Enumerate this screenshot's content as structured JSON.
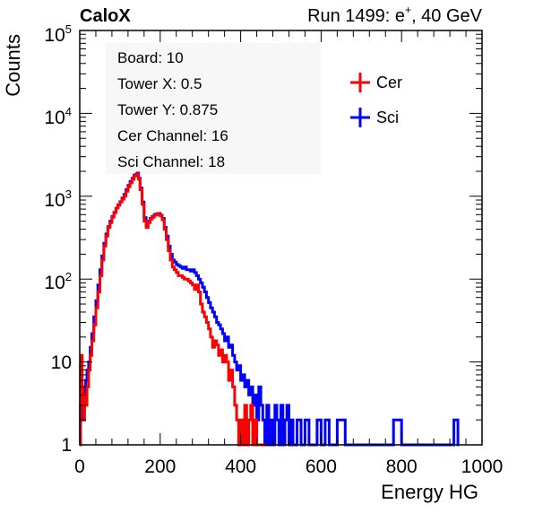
{
  "header": {
    "left": "CaloX",
    "run_prefix": "Run 1499: e",
    "run_sup": "+",
    "run_suffix": ", 40 GeV"
  },
  "info_box": {
    "lines": [
      "Board: 10",
      "Tower X: 0.5",
      "Tower Y: 0.875",
      "Cer Channel: 16",
      "Sci Channel: 18"
    ]
  },
  "chart_data": {
    "type": "line",
    "xlabel": "Energy HG",
    "ylabel": "Counts",
    "xlim": [
      0,
      1000
    ],
    "ylim": [
      1,
      100000
    ],
    "y_scale": "log",
    "grid": false,
    "legend_placement": "top-right",
    "x_ticks": [
      "0",
      "200",
      "400",
      "600",
      "800",
      "1000"
    ],
    "y_ticks": [
      {
        "base": "1",
        "exp": ""
      },
      {
        "base": "10",
        "exp": ""
      },
      {
        "base": "10",
        "exp": "2"
      },
      {
        "base": "10",
        "exp": "3"
      },
      {
        "base": "10",
        "exp": "4"
      },
      {
        "base": "10",
        "exp": "5"
      }
    ],
    "series": [
      {
        "name": "Cer",
        "color": "#ff0000",
        "points": [
          [
            0,
            1
          ],
          [
            2,
            9
          ],
          [
            4,
            12
          ],
          [
            6,
            5
          ],
          [
            8,
            3
          ],
          [
            10,
            2
          ],
          [
            12,
            4
          ],
          [
            15,
            3
          ],
          [
            18,
            5
          ],
          [
            22,
            8
          ],
          [
            26,
            12
          ],
          [
            30,
            18
          ],
          [
            35,
            28
          ],
          [
            40,
            45
          ],
          [
            45,
            70
          ],
          [
            50,
            110
          ],
          [
            55,
            170
          ],
          [
            60,
            250
          ],
          [
            65,
            330
          ],
          [
            70,
            420
          ],
          [
            75,
            480
          ],
          [
            80,
            560
          ],
          [
            85,
            630
          ],
          [
            90,
            720
          ],
          [
            95,
            780
          ],
          [
            100,
            850
          ],
          [
            105,
            920
          ],
          [
            110,
            1000
          ],
          [
            115,
            1150
          ],
          [
            120,
            1300
          ],
          [
            125,
            1450
          ],
          [
            130,
            1600
          ],
          [
            135,
            1750
          ],
          [
            140,
            1800
          ],
          [
            143,
            1850
          ],
          [
            146,
            1600
          ],
          [
            150,
            1200
          ],
          [
            155,
            800
          ],
          [
            160,
            500
          ],
          [
            165,
            420
          ],
          [
            170,
            480
          ],
          [
            175,
            530
          ],
          [
            180,
            560
          ],
          [
            185,
            590
          ],
          [
            190,
            600
          ],
          [
            195,
            610
          ],
          [
            200,
            580
          ],
          [
            205,
            520
          ],
          [
            210,
            400
          ],
          [
            215,
            300
          ],
          [
            220,
            220
          ],
          [
            225,
            170
          ],
          [
            230,
            140
          ],
          [
            235,
            130
          ],
          [
            240,
            120
          ],
          [
            245,
            110
          ],
          [
            250,
            110
          ],
          [
            255,
            105
          ],
          [
            260,
            100
          ],
          [
            265,
            100
          ],
          [
            270,
            95
          ],
          [
            275,
            90
          ],
          [
            280,
            85
          ],
          [
            285,
            75
          ],
          [
            290,
            85
          ],
          [
            295,
            70
          ],
          [
            300,
            50
          ],
          [
            305,
            40
          ],
          [
            310,
            35
          ],
          [
            315,
            30
          ],
          [
            320,
            25
          ],
          [
            325,
            20
          ],
          [
            330,
            15
          ],
          [
            335,
            18
          ],
          [
            340,
            16
          ],
          [
            345,
            12
          ],
          [
            350,
            14
          ],
          [
            355,
            10
          ],
          [
            360,
            12
          ],
          [
            365,
            10
          ],
          [
            370,
            6
          ],
          [
            375,
            8
          ],
          [
            380,
            5
          ],
          [
            385,
            3
          ],
          [
            390,
            2
          ],
          [
            395,
            1
          ],
          [
            400,
            2
          ],
          [
            405,
            1
          ],
          [
            410,
            3
          ],
          [
            415,
            1
          ],
          [
            420,
            2
          ],
          [
            425,
            3
          ],
          [
            430,
            1
          ],
          [
            435,
            2
          ],
          [
            440,
            1
          ],
          [
            450,
            1
          ],
          [
            460,
            1
          ]
        ]
      },
      {
        "name": "Sci",
        "color": "#0000ff",
        "points": [
          [
            0,
            1
          ],
          [
            2,
            3
          ],
          [
            4,
            2
          ],
          [
            6,
            4
          ],
          [
            8,
            3
          ],
          [
            10,
            5
          ],
          [
            12,
            4
          ],
          [
            15,
            6
          ],
          [
            18,
            8
          ],
          [
            22,
            10
          ],
          [
            26,
            15
          ],
          [
            30,
            22
          ],
          [
            35,
            35
          ],
          [
            40,
            55
          ],
          [
            45,
            85
          ],
          [
            50,
            130
          ],
          [
            55,
            190
          ],
          [
            60,
            270
          ],
          [
            65,
            350
          ],
          [
            70,
            430
          ],
          [
            75,
            500
          ],
          [
            80,
            570
          ],
          [
            85,
            640
          ],
          [
            90,
            720
          ],
          [
            95,
            790
          ],
          [
            100,
            860
          ],
          [
            105,
            950
          ],
          [
            110,
            1050
          ],
          [
            115,
            1200
          ],
          [
            120,
            1350
          ],
          [
            125,
            1500
          ],
          [
            130,
            1650
          ],
          [
            135,
            1800
          ],
          [
            140,
            1850
          ],
          [
            143,
            1900
          ],
          [
            146,
            1650
          ],
          [
            150,
            1250
          ],
          [
            155,
            850
          ],
          [
            160,
            550
          ],
          [
            165,
            450
          ],
          [
            170,
            500
          ],
          [
            175,
            540
          ],
          [
            180,
            570
          ],
          [
            185,
            600
          ],
          [
            190,
            610
          ],
          [
            195,
            620
          ],
          [
            200,
            590
          ],
          [
            205,
            540
          ],
          [
            210,
            420
          ],
          [
            215,
            330
          ],
          [
            220,
            250
          ],
          [
            225,
            200
          ],
          [
            230,
            170
          ],
          [
            235,
            160
          ],
          [
            240,
            150
          ],
          [
            245,
            145
          ],
          [
            250,
            140
          ],
          [
            255,
            135
          ],
          [
            260,
            140
          ],
          [
            265,
            130
          ],
          [
            270,
            130
          ],
          [
            275,
            125
          ],
          [
            280,
            130
          ],
          [
            285,
            120
          ],
          [
            290,
            110
          ],
          [
            295,
            100
          ],
          [
            300,
            90
          ],
          [
            305,
            80
          ],
          [
            310,
            70
          ],
          [
            315,
            60
          ],
          [
            320,
            52
          ],
          [
            325,
            45
          ],
          [
            330,
            40
          ],
          [
            335,
            35
          ],
          [
            340,
            30
          ],
          [
            345,
            28
          ],
          [
            350,
            25
          ],
          [
            355,
            22
          ],
          [
            360,
            18
          ],
          [
            365,
            20
          ],
          [
            370,
            15
          ],
          [
            375,
            16
          ],
          [
            380,
            12
          ],
          [
            385,
            10
          ],
          [
            390,
            8
          ],
          [
            395,
            9
          ],
          [
            400,
            6
          ],
          [
            405,
            7
          ],
          [
            410,
            5
          ],
          [
            415,
            6
          ],
          [
            420,
            4
          ],
          [
            425,
            5
          ],
          [
            430,
            3
          ],
          [
            435,
            4
          ],
          [
            440,
            2
          ],
          [
            445,
            5
          ],
          [
            450,
            3
          ],
          [
            455,
            2
          ],
          [
            460,
            1
          ],
          [
            465,
            3
          ],
          [
            470,
            1
          ],
          [
            475,
            2
          ],
          [
            480,
            1
          ],
          [
            485,
            3
          ],
          [
            490,
            2
          ],
          [
            495,
            1
          ],
          [
            500,
            3
          ],
          [
            505,
            1
          ],
          [
            510,
            2
          ],
          [
            515,
            3
          ],
          [
            520,
            1
          ],
          [
            525,
            2
          ],
          [
            530,
            1
          ],
          [
            540,
            2
          ],
          [
            550,
            1
          ],
          [
            560,
            2
          ],
          [
            570,
            1
          ],
          [
            580,
            1
          ],
          [
            590,
            2
          ],
          [
            600,
            1
          ],
          [
            610,
            2
          ],
          [
            620,
            1
          ],
          [
            640,
            2
          ],
          [
            660,
            1
          ],
          [
            700,
            1
          ],
          [
            780,
            2
          ],
          [
            800,
            1
          ],
          [
            930,
            2
          ],
          [
            940,
            1
          ]
        ]
      }
    ]
  }
}
